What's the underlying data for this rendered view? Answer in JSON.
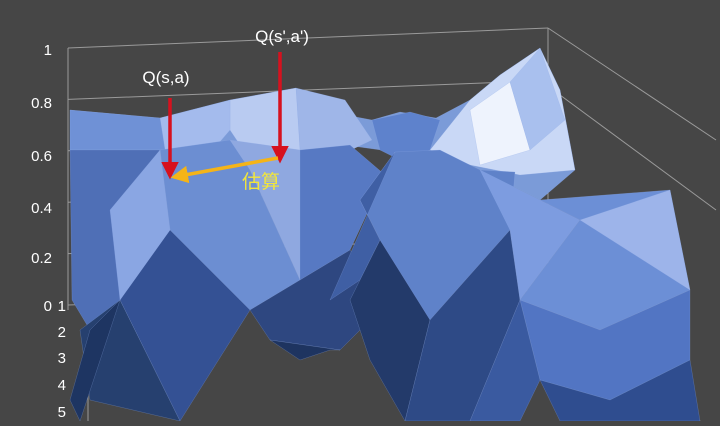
{
  "chart_data": {
    "type": "surface3d",
    "title": "",
    "z_ticks": [
      "1",
      "0.8",
      "0.6",
      "0.4",
      "0.2",
      "0"
    ],
    "y_ticks": [
      "1",
      "2",
      "3",
      "4",
      "5"
    ],
    "zlim": [
      0,
      1
    ],
    "grid": true,
    "annotations": {
      "q_current": "Q(s,a)",
      "q_next": "Q(s',a')",
      "estimate": "估算"
    },
    "colors": {
      "background": "#464646",
      "surface": "#6d8fd6",
      "arrow_red": "#d6111e",
      "arrow_yellow": "#f5b418",
      "estimate_text": "#f2e63a"
    }
  }
}
